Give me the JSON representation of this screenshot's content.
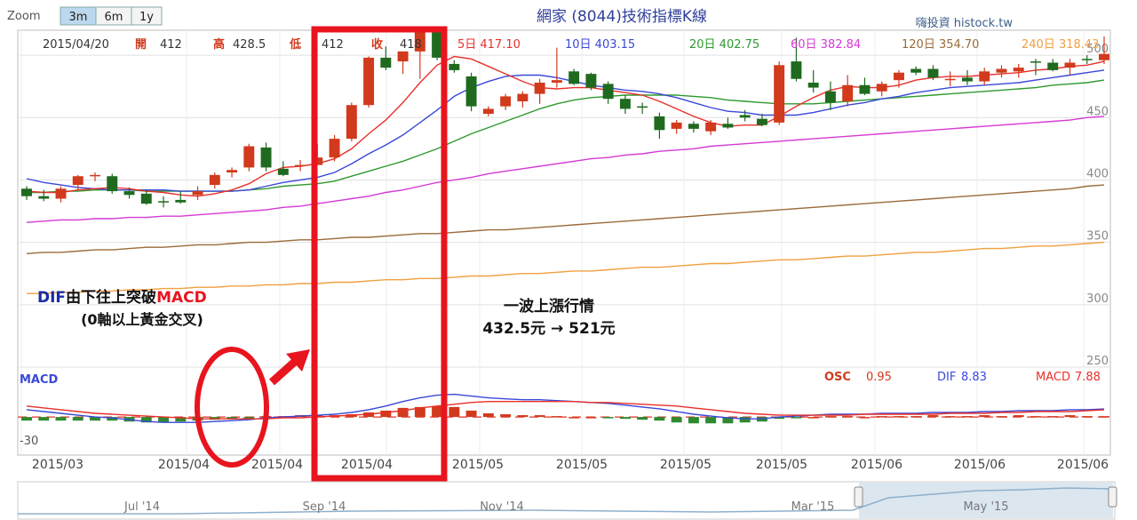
{
  "header": {
    "zoom_label": "Zoom",
    "zoom_options": [
      "3m",
      "6m",
      "1y"
    ],
    "zoom_selected": "3m",
    "title": "網家 (8044)技術指標K線",
    "site": "嗨投資 histock.tw"
  },
  "ohlc_readout": {
    "date": "2015/04/20",
    "open_label": "開",
    "open": "412",
    "high_label": "高",
    "high": "428.5",
    "low_label": "低",
    "low": "412",
    "close_label": "收",
    "close": "418"
  },
  "ma_readout": [
    {
      "label": "5日",
      "value": "417.10",
      "color": "#e8302a"
    },
    {
      "label": "10日",
      "value": "403.15",
      "color": "#3a48d8"
    },
    {
      "label": "20日",
      "value": "402.75",
      "color": "#2e9a2e"
    },
    {
      "label": "60日",
      "value": "382.84",
      "color": "#d53ad5"
    },
    {
      "label": "120日",
      "value": "354.70",
      "color": "#9b6b3a"
    },
    {
      "label": "240日",
      "value": "318.43",
      "color": "#f0a040"
    }
  ],
  "macd_readout": {
    "panel_label": "MACD",
    "osc_label": "OSC",
    "osc_value": "0.95",
    "dif_label": "DIF",
    "dif_value": "8.83",
    "macd_label": "MACD",
    "macd_value": "7.88",
    "axis_min_label": "-30"
  },
  "annotations": {
    "dif_part1": "DIF",
    "dif_part2": "由下往上突破",
    "dif_part3": "MACD",
    "dif_line2": "(0軸以上黃金交叉)",
    "wave_line1": "一波上漲行情",
    "wave_line2": "432.5元 → 521元"
  },
  "colors": {
    "up": "#d13a1c",
    "down": "#1f6a1f",
    "highlight": "#e8141e",
    "dif": "#3a48d8",
    "macd": "#e8302a"
  },
  "navigator": {
    "labels": [
      "Jul '14",
      "Sep '14",
      "Nov '14",
      "Mar '15",
      "May '15"
    ]
  },
  "chart_data": {
    "type": "candlestick",
    "title": "網家 (8044)技術指標K線",
    "y_ticks": [
      250,
      300,
      350,
      400,
      450,
      500
    ],
    "ylim": [
      250,
      520
    ],
    "x_tick_labels": [
      "2015/03",
      "2015/04",
      "2015/04",
      "2015/04",
      "2015/05",
      "2015/05",
      "2015/05",
      "2015/05",
      "2015/06",
      "2015/06",
      "2015/06"
    ],
    "candles": [
      [
        393,
        395,
        384,
        387
      ],
      [
        387,
        392,
        383,
        385
      ],
      [
        385,
        395,
        382,
        393
      ],
      [
        396,
        404,
        392,
        403
      ],
      [
        403,
        406,
        399,
        404
      ],
      [
        403,
        405,
        389,
        391
      ],
      [
        391,
        394,
        385,
        388
      ],
      [
        389,
        392,
        380,
        381
      ],
      [
        383,
        387,
        378,
        382
      ],
      [
        384,
        391,
        381,
        382
      ],
      [
        388,
        395,
        384,
        391
      ],
      [
        396,
        406,
        393,
        404
      ],
      [
        406,
        410,
        402,
        408
      ],
      [
        410,
        429,
        407,
        427
      ],
      [
        426,
        430,
        407,
        410
      ],
      [
        409,
        415,
        403,
        404
      ],
      [
        411,
        416,
        407,
        412
      ],
      [
        412,
        428.5,
        412,
        418
      ],
      [
        418,
        436,
        415,
        433
      ],
      [
        433,
        462,
        431,
        460
      ],
      [
        460,
        499,
        458,
        498
      ],
      [
        498,
        507,
        488,
        490
      ],
      [
        495,
        503,
        485,
        503
      ],
      [
        503,
        521,
        481,
        519
      ],
      [
        519,
        521,
        496,
        498
      ],
      [
        493,
        496,
        486,
        488
      ],
      [
        483,
        486,
        455,
        459
      ],
      [
        453,
        459,
        451,
        457
      ],
      [
        459,
        469,
        456,
        467
      ],
      [
        463,
        471,
        458,
        469
      ],
      [
        469,
        481,
        461,
        478
      ],
      [
        478,
        506,
        474,
        480
      ],
      [
        487,
        489,
        476,
        477
      ],
      [
        485,
        486,
        472,
        474
      ],
      [
        477,
        479,
        461,
        465
      ],
      [
        465,
        468,
        453,
        457
      ],
      [
        459,
        462,
        453,
        458
      ],
      [
        451,
        454,
        433,
        440
      ],
      [
        441,
        448,
        437,
        446
      ],
      [
        445,
        447,
        438,
        441
      ],
      [
        439,
        448,
        436,
        446
      ],
      [
        445,
        450,
        441,
        442
      ],
      [
        452,
        456,
        447,
        450
      ],
      [
        449,
        453,
        443,
        444
      ],
      [
        446,
        495,
        444,
        492
      ],
      [
        495,
        514,
        479,
        481
      ],
      [
        478,
        488,
        470,
        474
      ],
      [
        471,
        479,
        456,
        462
      ],
      [
        463,
        484,
        459,
        476
      ],
      [
        476,
        482,
        468,
        469
      ],
      [
        471,
        479,
        467,
        477
      ],
      [
        480,
        488,
        474,
        486
      ],
      [
        489,
        491,
        484,
        486
      ],
      [
        489,
        492,
        480,
        482
      ],
      [
        481,
        487,
        475,
        481
      ],
      [
        482,
        488,
        476,
        479
      ],
      [
        479,
        490,
        476,
        487
      ],
      [
        486,
        492,
        482,
        489
      ],
      [
        487,
        493,
        482,
        490
      ],
      [
        495,
        497,
        484,
        494
      ],
      [
        494,
        497,
        487,
        488
      ],
      [
        490,
        497,
        484,
        494
      ],
      [
        497,
        500,
        493,
        496
      ],
      [
        496,
        515,
        493,
        501
      ]
    ],
    "ma5": [
      391,
      390,
      390,
      392,
      393,
      394,
      393,
      391,
      390,
      388,
      387,
      389,
      392,
      397,
      405,
      410,
      411,
      413,
      417,
      425,
      437,
      448,
      462,
      478,
      492,
      499,
      497,
      491,
      485,
      479,
      474,
      473,
      474,
      474,
      472,
      470,
      468,
      463,
      457,
      451,
      446,
      443,
      444,
      444,
      451,
      459,
      466,
      472,
      475,
      474,
      474,
      476,
      480,
      482,
      483,
      483,
      484,
      485,
      486,
      488,
      489,
      491,
      492,
      495
    ],
    "ma10": [
      401,
      398,
      396,
      394,
      393,
      392,
      392,
      392,
      392,
      391,
      391,
      391,
      391,
      392,
      395,
      398,
      400,
      402,
      406,
      413,
      421,
      428,
      436,
      446,
      456,
      467,
      474,
      479,
      483,
      484,
      484,
      482,
      479,
      476,
      474,
      472,
      471,
      469,
      466,
      462,
      458,
      455,
      454,
      452,
      452,
      452,
      454,
      457,
      460,
      462,
      465,
      467,
      470,
      472,
      474,
      475,
      476,
      477,
      478,
      480,
      482,
      484,
      486,
      488
    ],
    "ma20": [
      390,
      390,
      391,
      391,
      392,
      392,
      392,
      391,
      391,
      391,
      391,
      391,
      391,
      392,
      393,
      395,
      396,
      397,
      399,
      403,
      407,
      411,
      415,
      420,
      425,
      431,
      437,
      442,
      447,
      452,
      457,
      461,
      464,
      466,
      467,
      468,
      468,
      468,
      468,
      467,
      466,
      464,
      463,
      462,
      461,
      461,
      461,
      462,
      463,
      464,
      465,
      466,
      467,
      468,
      469,
      470,
      471,
      472,
      473,
      474,
      476,
      477,
      478,
      480
    ],
    "ma60": [
      366,
      367,
      368,
      368,
      369,
      369,
      370,
      370,
      371,
      371,
      372,
      373,
      374,
      375,
      376,
      378,
      379,
      381,
      383,
      385,
      387,
      390,
      392,
      395,
      398,
      400,
      402,
      405,
      407,
      409,
      411,
      413,
      415,
      417,
      418,
      420,
      421,
      423,
      424,
      425,
      427,
      428,
      429,
      430,
      431,
      432,
      433,
      434,
      435,
      436,
      437,
      438,
      439,
      440,
      441,
      442,
      443,
      444,
      445,
      446,
      447,
      448,
      450,
      451
    ],
    "ma120": [
      341,
      342,
      342,
      343,
      344,
      344,
      345,
      346,
      346,
      347,
      348,
      348,
      349,
      350,
      350,
      351,
      352,
      352,
      353,
      354,
      354,
      355,
      356,
      357,
      357,
      358,
      359,
      360,
      360,
      361,
      362,
      363,
      364,
      365,
      366,
      367,
      368,
      369,
      370,
      371,
      372,
      373,
      374,
      375,
      376,
      377,
      378,
      379,
      380,
      381,
      382,
      383,
      384,
      385,
      386,
      387,
      388,
      389,
      390,
      391,
      392,
      393,
      395,
      396
    ],
    "ma240": [
      309,
      309,
      310,
      310,
      311,
      311,
      312,
      312,
      313,
      313,
      314,
      314,
      315,
      315,
      316,
      316,
      317,
      317,
      318,
      318,
      319,
      320,
      320,
      321,
      321,
      322,
      323,
      323,
      324,
      325,
      325,
      326,
      327,
      327,
      328,
      329,
      330,
      330,
      331,
      332,
      333,
      333,
      334,
      335,
      336,
      336,
      337,
      338,
      339,
      339,
      340,
      341,
      342,
      342,
      343,
      344,
      345,
      345,
      346,
      347,
      347,
      348,
      349,
      350
    ],
    "macd": {
      "zero_line": 0,
      "ylim": [
        -40,
        50
      ],
      "dif": [
        8,
        6,
        4,
        2,
        0,
        -1,
        -3,
        -5,
        -6,
        -6,
        -6,
        -5,
        -4,
        -3,
        -1,
        0,
        1,
        2,
        3,
        5,
        8,
        12,
        17,
        21,
        24,
        25,
        23,
        21,
        20,
        19,
        19,
        18,
        17,
        16,
        15,
        13,
        11,
        9,
        6,
        3,
        1,
        -1,
        -2,
        -2,
        0,
        1,
        2,
        3,
        3,
        3,
        4,
        4,
        4,
        5,
        5,
        5,
        6,
        6,
        7,
        7,
        7,
        8,
        8,
        8.83
      ],
      "macd": [
        12,
        10,
        8,
        6,
        4,
        3,
        2,
        1,
        0,
        -1,
        -2,
        -2,
        -2,
        -2,
        -2,
        -1,
        -1,
        0,
        1,
        2,
        3,
        5,
        7,
        10,
        12,
        14,
        16,
        17,
        17,
        17,
        17,
        17,
        17,
        16,
        16,
        15,
        14,
        13,
        12,
        10,
        8,
        6,
        4,
        3,
        2,
        2,
        2,
        2,
        2,
        3,
        3,
        3,
        3,
        3,
        4,
        4,
        4,
        5,
        5,
        6,
        6,
        6,
        7,
        7.88
      ],
      "osc": [
        -4,
        -4,
        -4,
        -4,
        -4,
        -4,
        -5,
        -6,
        -6,
        -5,
        -4,
        -3,
        -2,
        -1,
        1,
        1,
        2,
        2,
        2,
        3,
        5,
        7,
        10,
        11,
        12,
        11,
        7,
        4,
        3,
        2,
        2,
        1,
        0,
        0,
        -1,
        -2,
        -3,
        -4,
        -6,
        -7,
        -7,
        -7,
        -6,
        -5,
        -2,
        -1,
        0,
        1,
        1,
        0,
        1,
        1,
        1,
        2,
        1,
        1,
        2,
        1,
        2,
        1,
        1,
        2,
        1,
        0.95
      ]
    }
  }
}
